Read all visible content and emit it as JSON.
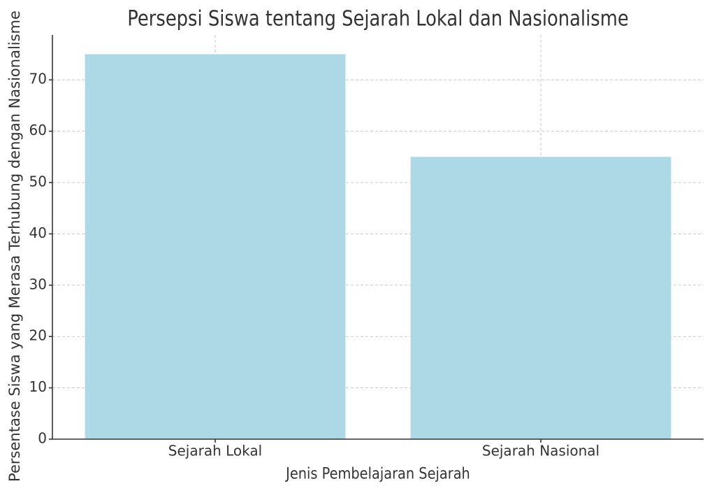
{
  "chart_data": {
    "type": "bar",
    "title": "Persepsi Siswa tentang Sejarah Lokal dan Nasionalisme",
    "x_label": "Jenis Pembelajaran Sejarah",
    "y_label": "Persentase Siswa yang Merasa Terhubung dengan Nasionalisme",
    "categories": [
      "Sejarah Lokal",
      "Sejarah Nasional"
    ],
    "values": [
      75,
      55
    ],
    "color": "#add8e6",
    "ylim": [
      0,
      78.75
    ],
    "yticks": [
      0,
      10,
      20,
      30,
      40,
      50,
      60,
      70
    ],
    "grid": true
  }
}
